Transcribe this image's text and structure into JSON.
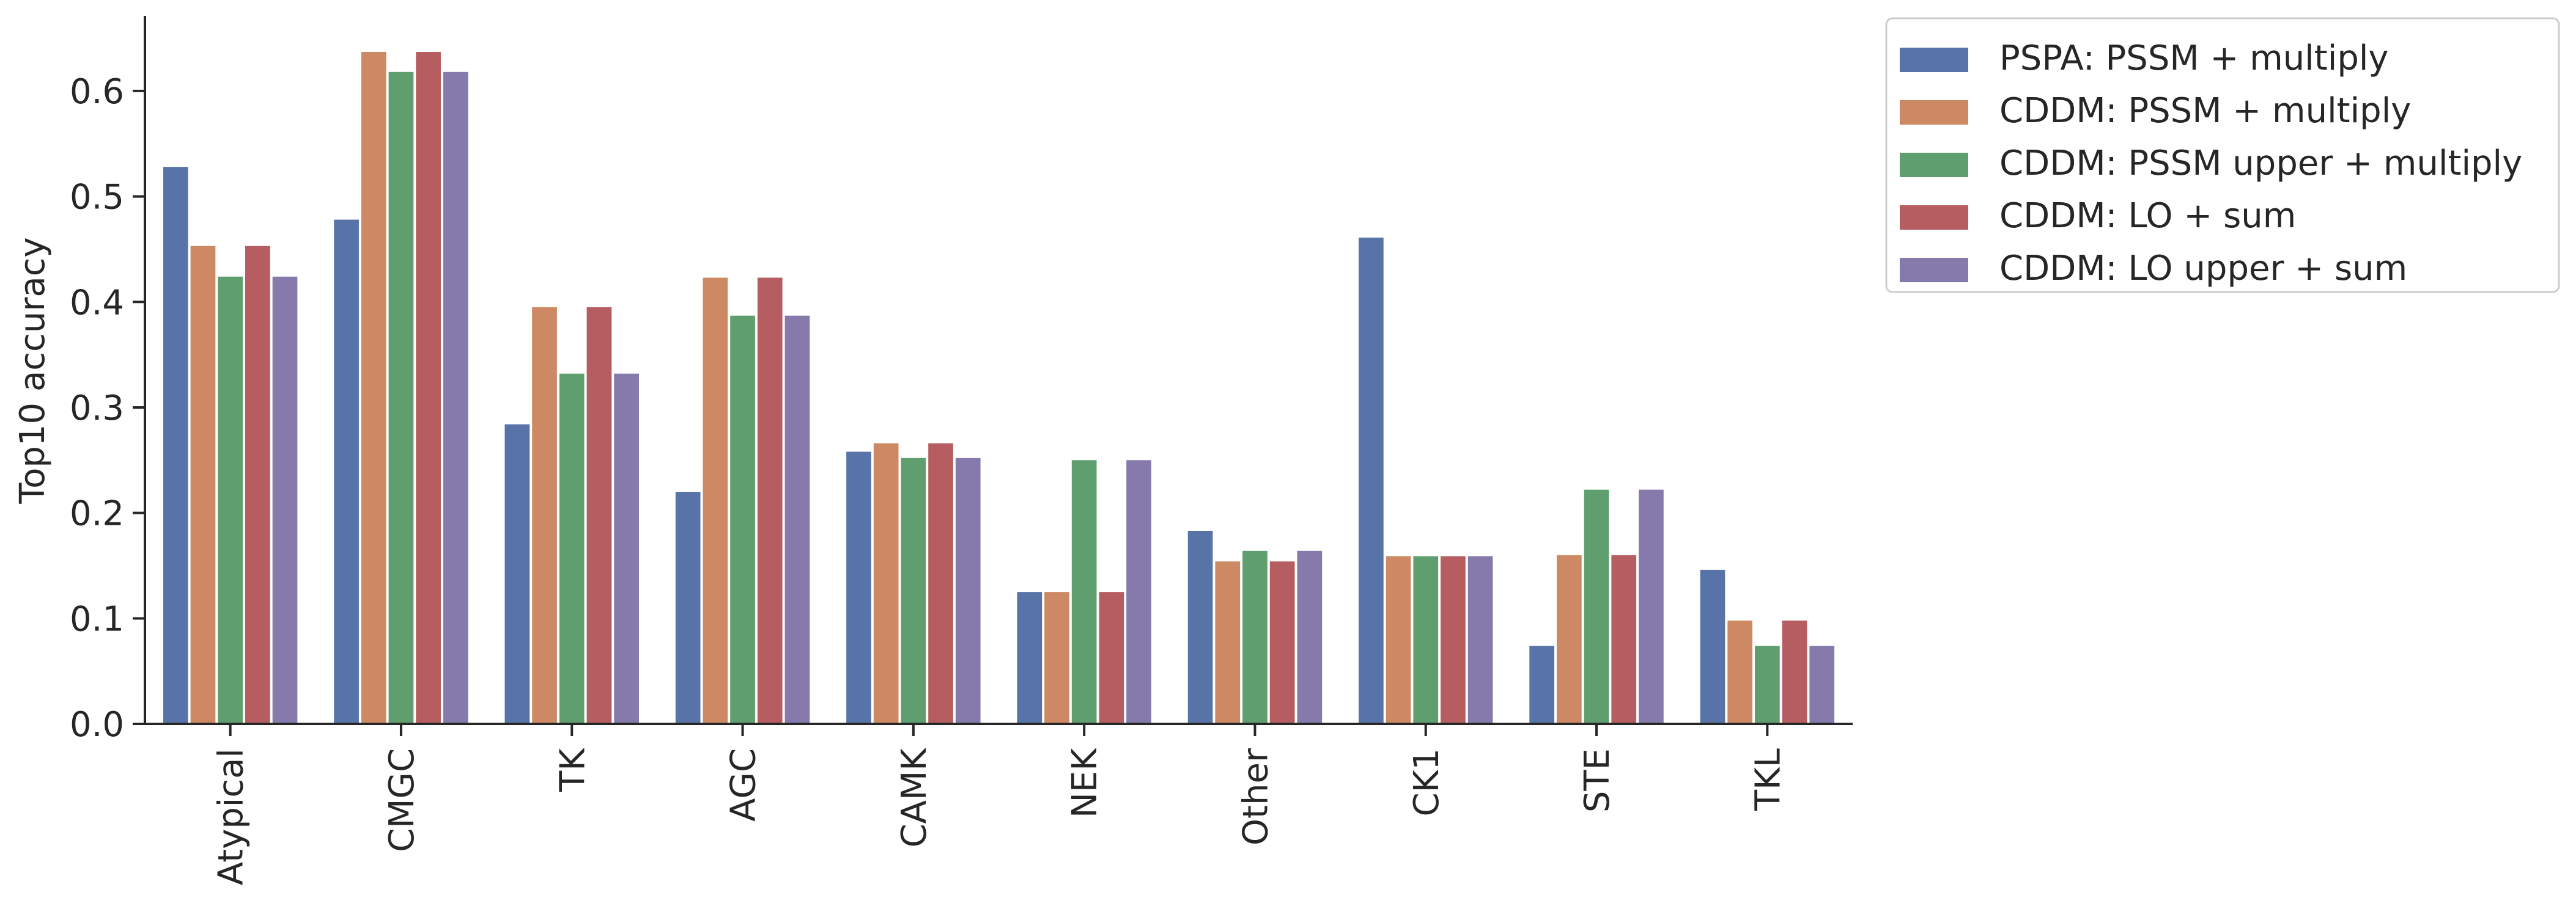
{
  "chart_data": {
    "type": "bar",
    "title": "",
    "xlabel": "",
    "ylabel": "Top10 accuracy",
    "ylim": [
      0,
      0.67
    ],
    "yticks": [
      0.0,
      0.1,
      0.2,
      0.3,
      0.4,
      0.5,
      0.6
    ],
    "ytick_labels": [
      "0.0",
      "0.1",
      "0.2",
      "0.3",
      "0.4",
      "0.5",
      "0.6"
    ],
    "grid": false,
    "legend_position": "outside-top-right",
    "categories": [
      "Atypical",
      "CMGC",
      "TK",
      "AGC",
      "CAMK",
      "NEK",
      "Other",
      "CK1",
      "STE",
      "TKL"
    ],
    "series": [
      {
        "name": "PSPA: PSSM + multiply",
        "color": "#5873a8",
        "values": [
          0.528,
          0.478,
          0.284,
          0.22,
          0.258,
          0.125,
          0.183,
          0.461,
          0.074,
          0.146
        ]
      },
      {
        "name": "CDDM: PSSM + multiply",
        "color": "#cc8963",
        "values": [
          0.453,
          0.637,
          0.395,
          0.423,
          0.266,
          0.125,
          0.154,
          0.159,
          0.16,
          0.098
        ]
      },
      {
        "name": "CDDM: PSSM upper + multiply",
        "color": "#5f9e6e",
        "values": [
          0.424,
          0.618,
          0.332,
          0.387,
          0.252,
          0.25,
          0.164,
          0.159,
          0.222,
          0.074
        ]
      },
      {
        "name": "CDDM: LO + sum",
        "color": "#b55d60",
        "values": [
          0.453,
          0.637,
          0.395,
          0.423,
          0.266,
          0.125,
          0.154,
          0.159,
          0.16,
          0.098
        ]
      },
      {
        "name": "CDDM: LO upper + sum",
        "color": "#857aab",
        "values": [
          0.424,
          0.618,
          0.332,
          0.387,
          0.252,
          0.25,
          0.164,
          0.159,
          0.222,
          0.074
        ]
      }
    ]
  }
}
